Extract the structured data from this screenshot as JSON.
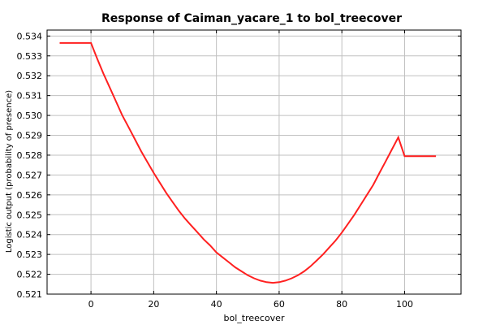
{
  "chart_data": {
    "type": "line",
    "title": "Response of Caiman_yacare_1 to bol_treecover",
    "xlabel": "bol_treecover",
    "ylabel": "Logistic output (probability of presence)",
    "xlim": [
      -14,
      118
    ],
    "ylim": [
      0.521,
      0.5343
    ],
    "x_ticks": [
      0,
      20,
      40,
      60,
      80,
      100
    ],
    "y_ticks": [
      0.521,
      0.522,
      0.523,
      0.524,
      0.525,
      0.526,
      0.527,
      0.528,
      0.529,
      0.53,
      0.531,
      0.532,
      0.533,
      0.534
    ],
    "y_tick_decimals": 3,
    "grid": true,
    "line_color": "#ff2020",
    "series": [
      {
        "x": [
          -10,
          0,
          2,
          4,
          6,
          8,
          10,
          12,
          14,
          16,
          18,
          20,
          22,
          24,
          26,
          28,
          30,
          32,
          34,
          36,
          38,
          40,
          42,
          44,
          46,
          48,
          50,
          52,
          54,
          56,
          58,
          60,
          62,
          64,
          66,
          68,
          70,
          72,
          74,
          76,
          78,
          80,
          82,
          84,
          86,
          88,
          90,
          92,
          94,
          96,
          98,
          100,
          110
        ],
        "y": [
          0.53365,
          0.53365,
          0.53285,
          0.5321,
          0.5314,
          0.5307,
          0.53,
          0.5294,
          0.5288,
          0.5282,
          0.52765,
          0.5271,
          0.5266,
          0.5261,
          0.52565,
          0.5252,
          0.5248,
          0.52445,
          0.5241,
          0.52375,
          0.52345,
          0.5231,
          0.52285,
          0.5226,
          0.52235,
          0.52215,
          0.52195,
          0.5218,
          0.52168,
          0.5216,
          0.52157,
          0.5216,
          0.52168,
          0.5218,
          0.52195,
          0.52215,
          0.5224,
          0.5227,
          0.523,
          0.52335,
          0.5237,
          0.5241,
          0.52455,
          0.525,
          0.5255,
          0.526,
          0.5265,
          0.5271,
          0.5277,
          0.5283,
          0.5289,
          0.52795,
          0.52795
        ]
      }
    ]
  }
}
